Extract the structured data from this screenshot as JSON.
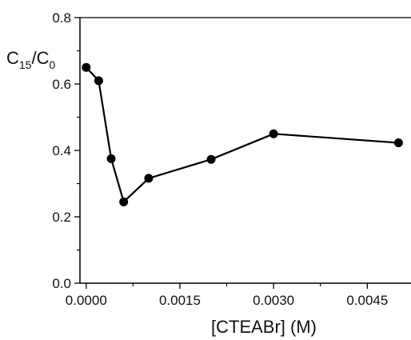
{
  "chart_data": {
    "type": "line",
    "xlabel": "[CTEABr] (M)",
    "ylabel": {
      "base1": "C",
      "sub1": "15",
      "sep": "/",
      "base2": "C",
      "sub2": "0"
    },
    "xlim": [
      -0.0001,
      0.0052
    ],
    "ylim": [
      0.0,
      0.8
    ],
    "xticks": [
      {
        "value": 0.0,
        "label": "0.0000"
      },
      {
        "value": 0.0015,
        "label": "0.0015"
      },
      {
        "value": 0.003,
        "label": "0.0030"
      },
      {
        "value": 0.0045,
        "label": "0.0045"
      }
    ],
    "yticks": [
      {
        "value": 0.0,
        "label": "0.0"
      },
      {
        "value": 0.2,
        "label": "0.2"
      },
      {
        "value": 0.4,
        "label": "0.4"
      },
      {
        "value": 0.6,
        "label": "0.6"
      },
      {
        "value": 0.8,
        "label": "0.8"
      }
    ],
    "series": [
      {
        "x": [
          0.0,
          0.0002,
          0.0004,
          0.0006,
          0.001,
          0.002,
          0.003,
          0.005
        ],
        "y": [
          0.65,
          0.61,
          0.375,
          0.245,
          0.316,
          0.373,
          0.45,
          0.423
        ]
      }
    ],
    "colors": {
      "line": "#000000",
      "marker": "#000000"
    }
  }
}
